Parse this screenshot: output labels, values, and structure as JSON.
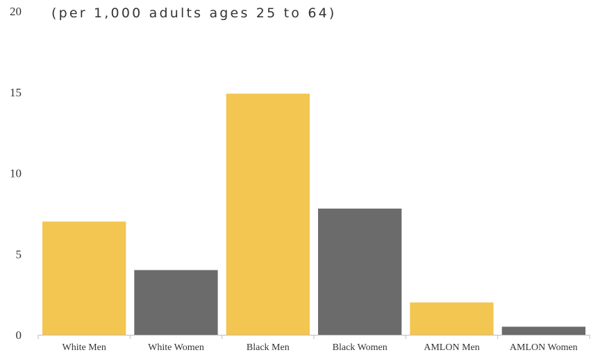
{
  "chart_data": {
    "type": "bar",
    "subtitle": "(per 1,000 adults ages 25 to 64)",
    "categories": [
      "White Men",
      "White Women",
      "Black Men",
      "Black Women",
      "AMLON Men",
      "AMLON Women"
    ],
    "values": [
      7.0,
      4.0,
      14.9,
      7.8,
      2.0,
      0.5
    ],
    "bar_colors": [
      "#f2c651",
      "#6b6b6b",
      "#f2c651",
      "#6b6b6b",
      "#f2c651",
      "#6b6b6b"
    ],
    "y_ticks": [
      "0",
      "5",
      "10",
      "15",
      "20"
    ],
    "ylim": [
      0,
      20
    ],
    "grid": false,
    "legend": "none"
  }
}
